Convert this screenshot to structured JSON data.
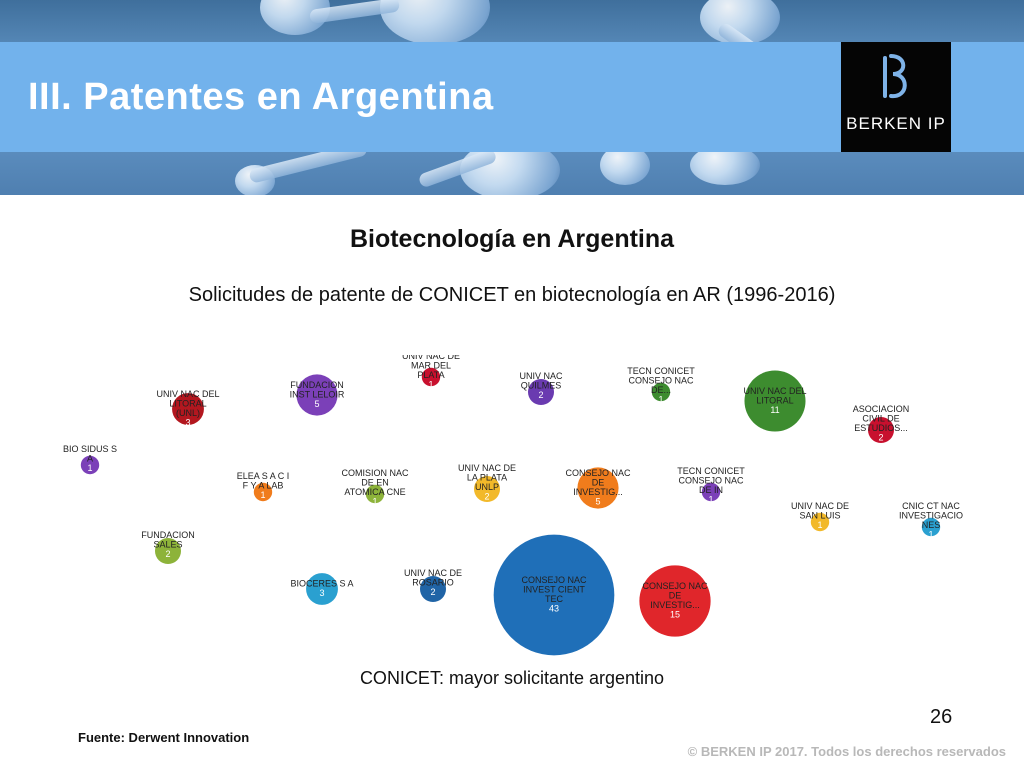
{
  "slide": {
    "title": "III. Patentes en Argentina",
    "heading": "Biotecnología en Argentina",
    "subheading": "Solicitudes de patente de CONICET en biotecnología en AR (1996-2016)",
    "caption": "CONICET: mayor solicitante argentino",
    "page_number": "26",
    "source": "Fuente: Derwent Innovation",
    "copyright": "© BERKEN IP 2017. Todos los derechos reservados"
  },
  "logo": {
    "text": "BERKEN IP",
    "icon": "berken-ip-logo-icon"
  },
  "colors": {
    "title_band": "#72b2ec",
    "blue": "#1f6fb8",
    "red": "#e0262b",
    "green": "#3d8c2f",
    "purple": "#7b40b8",
    "orange": "#f07c1c",
    "yellow": "#f2b92a",
    "olive": "#8db33a",
    "dark_red": "#b3171f",
    "teal": "#2aa0d0",
    "navy_blue": "#2064a6"
  },
  "chart_data": {
    "type": "bubble",
    "title": "Solicitudes de patente de CONICET en biotecnología en AR (1996-2016)",
    "bubbles": [
      {
        "label": [
          "UNIV NAC DEL",
          "LITORAL",
          "(UNL)"
        ],
        "value": 3,
        "color": "#b3171f"
      },
      {
        "label": [
          "FUNDACION",
          "INST LELOIR"
        ],
        "value": 5,
        "color": "#7b40b8"
      },
      {
        "label": [
          "UNIV NAC DE",
          "MAR DEL",
          "PLATA"
        ],
        "value": 1,
        "color": "#c8102e"
      },
      {
        "label": [
          "UNIV NAC",
          "QUILMES"
        ],
        "value": 2,
        "color": "#6a3bb0"
      },
      {
        "label": [
          "TECN CONICET",
          "CONSEJO NAC",
          "DE..."
        ],
        "value": 1,
        "color": "#3d8c2f"
      },
      {
        "label": [
          "UNIV NAC DEL",
          "LITORAL"
        ],
        "value": 11,
        "color": "#3d8c2f"
      },
      {
        "label": [
          "ASOCIACION",
          "CIVIL DE",
          "ESTUDIOS..."
        ],
        "value": 2,
        "color": "#c8102e"
      },
      {
        "label": [
          "BIO SIDUS S",
          "A"
        ],
        "value": 1,
        "color": "#7b40b8"
      },
      {
        "label": [
          "ELEA S A C I",
          "F Y A LAB"
        ],
        "value": 1,
        "color": "#f07c1c"
      },
      {
        "label": [
          "COMISION NAC",
          "DE EN",
          "ATOMICA CNE"
        ],
        "value": 1,
        "color": "#8db33a"
      },
      {
        "label": [
          "UNIV NAC DE",
          "LA PLATA",
          "UNLP"
        ],
        "value": 2,
        "color": "#f2b92a"
      },
      {
        "label": [
          "CONSEJO NAC",
          "DE",
          "INVESTIG..."
        ],
        "value": 5,
        "color": "#f07c1c"
      },
      {
        "label": [
          "TECN CONICET",
          "CONSEJO NAC",
          "DE IN"
        ],
        "value": 1,
        "color": "#7b40b8"
      },
      {
        "label": [
          "UNIV NAC DE",
          "SAN LUIS"
        ],
        "value": 1,
        "color": "#f2b92a"
      },
      {
        "label": [
          "CNIC CT NAC",
          "INVESTIGACIO",
          "NES"
        ],
        "value": 1,
        "color": "#2aa0d0"
      },
      {
        "label": [
          "FUNDACION",
          "SALES"
        ],
        "value": 2,
        "color": "#8db33a"
      },
      {
        "label": [
          "BIOCERES S A"
        ],
        "value": 3,
        "color": "#2aa0d0"
      },
      {
        "label": [
          "UNIV NAC DE",
          "ROSARIO"
        ],
        "value": 2,
        "color": "#2064a6"
      },
      {
        "label": [
          "CONSEJO NAC",
          "INVEST CIENT",
          "TEC"
        ],
        "value": 43,
        "color": "#1f6fb8"
      },
      {
        "label": [
          "CONSEJO NAC",
          "DE",
          "INVESTIG..."
        ],
        "value": 15,
        "color": "#e0262b"
      }
    ]
  }
}
